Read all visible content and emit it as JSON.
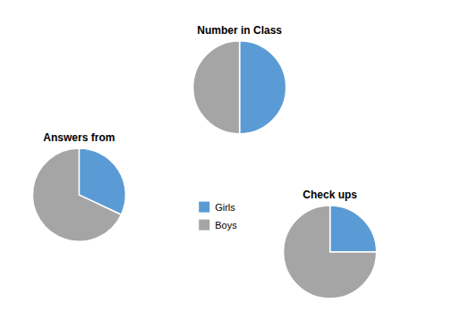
{
  "chart_data": {
    "type": "pie",
    "categories": [
      "Girls",
      "Boys"
    ],
    "colors": [
      "#5B9BD5",
      "#A5A5A5"
    ],
    "series": [
      {
        "name": "Number in Class",
        "values": [
          50,
          50
        ]
      },
      {
        "name": "Answers from",
        "values": [
          32,
          68
        ]
      },
      {
        "name": "Check ups",
        "values": [
          25,
          75
        ]
      }
    ],
    "legend": "center"
  }
}
